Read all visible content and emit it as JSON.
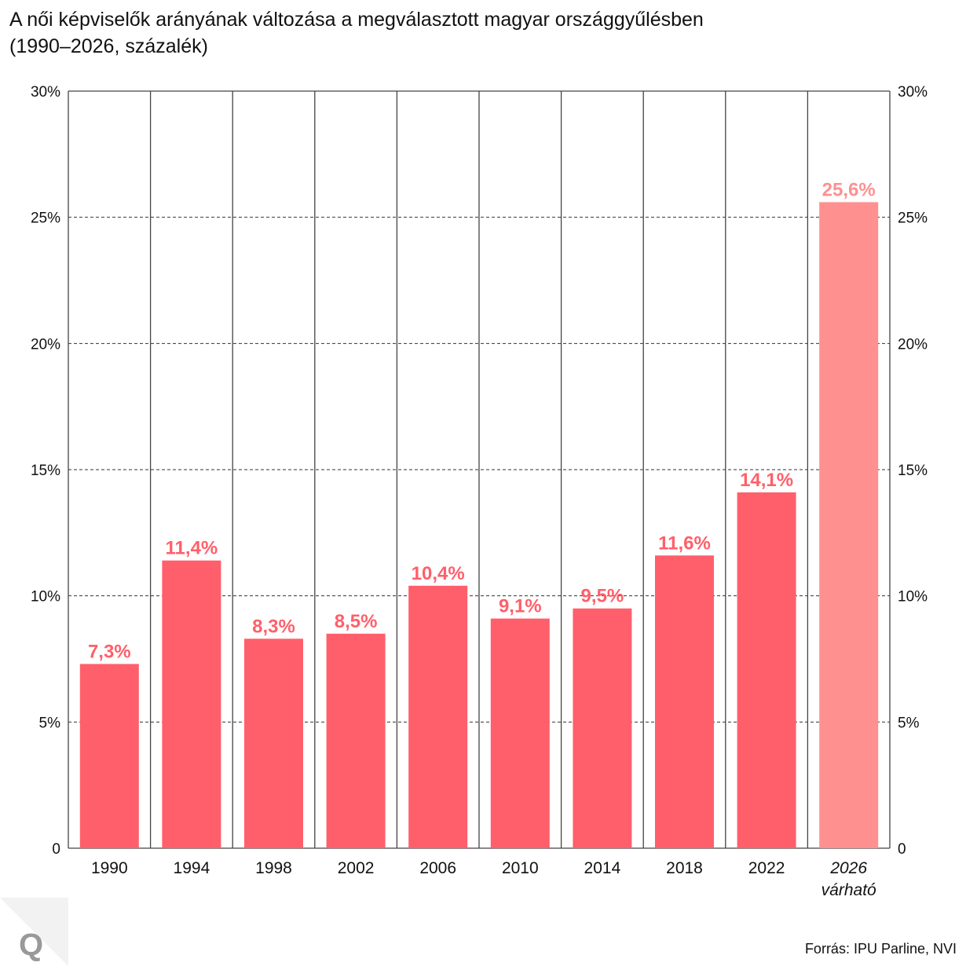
{
  "title_line1": "A női képviselők arányának változása a megválasztott magyar országgyűlésben",
  "title_line2": "(1990–2026, százalék)",
  "source": "Forrás: IPU Parline, NVI",
  "logo_text": "Q",
  "colors": {
    "bar": "#ff5f6a",
    "bar_projected": "#ff9090",
    "label": "#ff5f6a",
    "label_projected": "#ff9090"
  },
  "chart_data": {
    "type": "bar",
    "categories": [
      "1990",
      "1994",
      "1998",
      "2002",
      "2006",
      "2010",
      "2014",
      "2018",
      "2022",
      "2026"
    ],
    "category_sublabels": [
      "",
      "",
      "",
      "",
      "",
      "",
      "",
      "",
      "",
      "várható"
    ],
    "values": [
      7.3,
      11.4,
      8.3,
      8.5,
      10.4,
      9.1,
      9.5,
      11.6,
      14.1,
      25.6
    ],
    "data_labels": [
      "7,3%",
      "11,4%",
      "8,3%",
      "8,5%",
      "10,4%",
      "9,1%",
      "9,5%",
      "11,6%",
      "14,1%",
      "25,6%"
    ],
    "projected": [
      false,
      false,
      false,
      false,
      false,
      false,
      false,
      false,
      false,
      true
    ],
    "ylim": [
      0,
      30
    ],
    "yticks": [
      0,
      5,
      10,
      15,
      20,
      25,
      30
    ],
    "ytick_labels": [
      "0",
      "5%",
      "10%",
      "15%",
      "20%",
      "25%",
      "30%"
    ],
    "axes": "left and right",
    "grid": "horizontal dashed",
    "xlabel": "",
    "ylabel": ""
  }
}
